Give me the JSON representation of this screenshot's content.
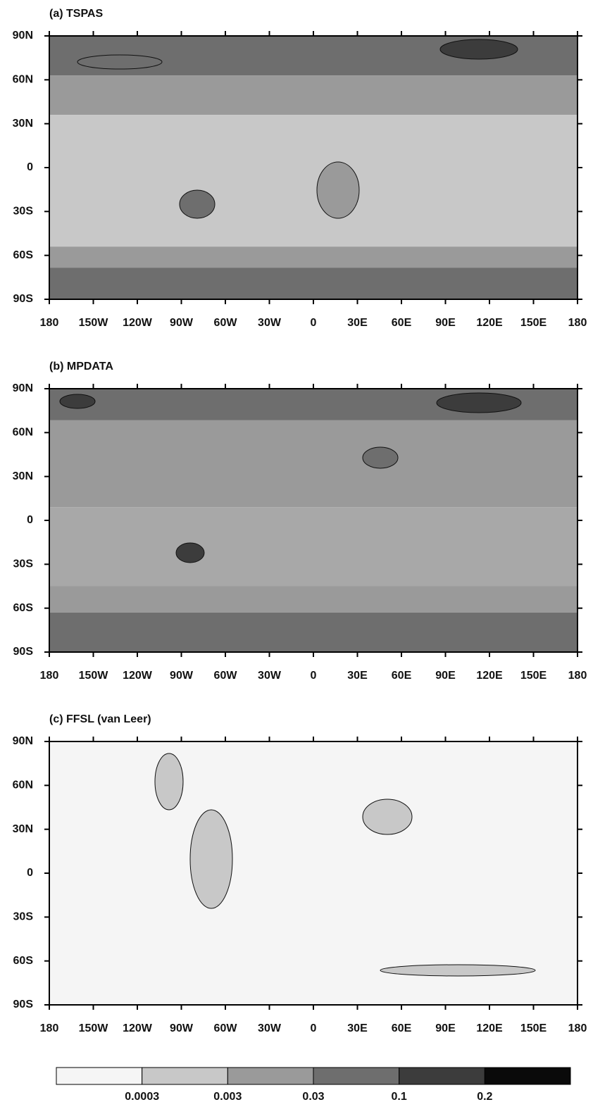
{
  "panels": [
    {
      "title": "(a) TSPAS"
    },
    {
      "title": "(b) MPDATA"
    },
    {
      "title": "(c) FFSL (van Leer)"
    }
  ],
  "x_labels": [
    "180",
    "150W",
    "120W",
    "90W",
    "60W",
    "30W",
    "0",
    "30E",
    "60E",
    "90E",
    "120E",
    "150E",
    "180"
  ],
  "y_labels": [
    "90N",
    "60N",
    "30N",
    "0",
    "30S",
    "60S",
    "90S"
  ],
  "colorbar": {
    "labels": [
      0.0003,
      0.003,
      0.03,
      0.1,
      0.2
    ],
    "colors": [
      "#f5f5f5",
      "#c8c8c8",
      "#9a9a9a",
      "#6e6e6e",
      "#3c3c3c",
      "#0a0a0a"
    ]
  }
}
